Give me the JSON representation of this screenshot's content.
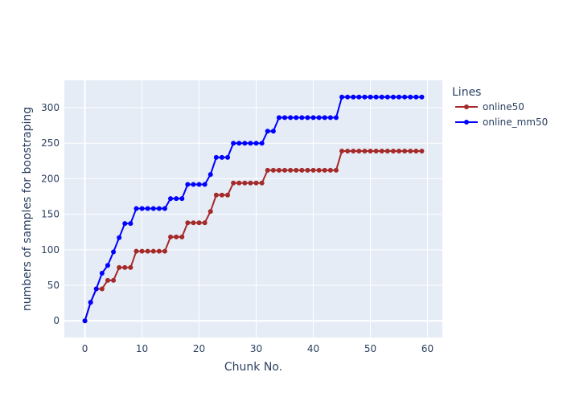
{
  "chart_data": {
    "type": "line",
    "title": "",
    "xlabel": "Chunk No.",
    "ylabel": "numbers of samples for boostraping",
    "xlim": [
      -3.6,
      62.6
    ],
    "ylim": [
      -23.5,
      338.5
    ],
    "xticks": [
      0,
      10,
      20,
      30,
      40,
      50,
      60
    ],
    "yticks": [
      0,
      50,
      100,
      150,
      200,
      250,
      300
    ],
    "grid": true,
    "legend_title": "Lines",
    "legend_position": "top-right outside plot",
    "colors": {
      "plot_background": "#e5ecf6",
      "grid": "#ffffff",
      "text": "#2a3f5f"
    },
    "series": [
      {
        "name": "online50",
        "color": "#a52a2a",
        "x": [
          0,
          1,
          2,
          3,
          4,
          5,
          6,
          7,
          8,
          9,
          10,
          11,
          12,
          13,
          14,
          15,
          16,
          17,
          18,
          19,
          20,
          21,
          22,
          23,
          24,
          25,
          26,
          27,
          28,
          29,
          30,
          31,
          32,
          33,
          34,
          35,
          36,
          37,
          38,
          39,
          40,
          41,
          42,
          43,
          44,
          45,
          46,
          47,
          48,
          49,
          50,
          51,
          52,
          53,
          54,
          55,
          56,
          57,
          58,
          59
        ],
        "y": [
          0,
          26,
          45,
          45,
          57,
          57,
          75,
          75,
          75,
          98,
          98,
          98,
          98,
          98,
          98,
          118,
          118,
          118,
          138,
          138,
          138,
          138,
          154,
          177,
          177,
          177,
          194,
          194,
          194,
          194,
          194,
          194,
          212,
          212,
          212,
          212,
          212,
          212,
          212,
          212,
          212,
          212,
          212,
          212,
          212,
          239,
          239,
          239,
          239,
          239,
          239,
          239,
          239,
          239,
          239,
          239,
          239,
          239,
          239,
          239
        ]
      },
      {
        "name": "online_mm50",
        "color": "#0000ff",
        "x": [
          0,
          1,
          2,
          3,
          4,
          5,
          6,
          7,
          8,
          9,
          10,
          11,
          12,
          13,
          14,
          15,
          16,
          17,
          18,
          19,
          20,
          21,
          22,
          23,
          24,
          25,
          26,
          27,
          28,
          29,
          30,
          31,
          32,
          33,
          34,
          35,
          36,
          37,
          38,
          39,
          40,
          41,
          42,
          43,
          44,
          45,
          46,
          47,
          48,
          49,
          50,
          51,
          52,
          53,
          54,
          55,
          56,
          57,
          58,
          59
        ],
        "y": [
          0,
          26,
          45,
          67,
          78,
          97,
          117,
          137,
          137,
          158,
          158,
          158,
          158,
          158,
          158,
          172,
          172,
          172,
          192,
          192,
          192,
          192,
          206,
          230,
          230,
          230,
          250,
          250,
          250,
          250,
          250,
          250,
          267,
          267,
          286,
          286,
          286,
          286,
          286,
          286,
          286,
          286,
          286,
          286,
          286,
          315,
          315,
          315,
          315,
          315,
          315,
          315,
          315,
          315,
          315,
          315,
          315,
          315,
          315,
          315
        ]
      }
    ]
  }
}
